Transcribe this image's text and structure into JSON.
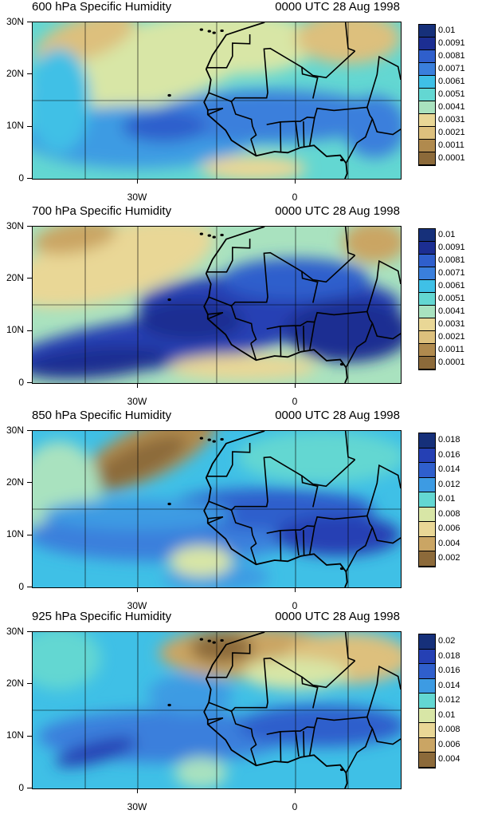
{
  "panels": [
    {
      "title_left": "600 hPa Specific Humidity",
      "title_right": "0000 UTC 28 Aug 1998",
      "y_ticks": [
        "30N",
        "20N",
        "10N",
        "0"
      ],
      "x_ticks": [
        "30W",
        "0"
      ],
      "legend_levels": [
        "0.01",
        "0.0091",
        "0.0081",
        "0.0071",
        "0.0061",
        "0.0051",
        "0.0041",
        "0.0031",
        "0.0021",
        "0.0011",
        "0.0001"
      ],
      "humidity_pattern": "moist-band-south-dry-north"
    },
    {
      "title_left": "700 hPa Specific Humidity",
      "title_right": "0000 UTC 28 Aug 1998",
      "y_ticks": [
        "30N",
        "20N",
        "10N",
        "0"
      ],
      "x_ticks": [
        "30W",
        "0"
      ],
      "legend_levels": [
        "0.01",
        "0.0091",
        "0.0081",
        "0.0071",
        "0.0061",
        "0.0051",
        "0.0041",
        "0.0031",
        "0.0021",
        "0.0011",
        "0.0001"
      ],
      "humidity_pattern": "strong-moist-plume-over-west-africa"
    },
    {
      "title_left": "850 hPa Specific Humidity",
      "title_right": "0000 UTC 28 Aug 1998",
      "y_ticks": [
        "30N",
        "20N",
        "10N",
        "0"
      ],
      "x_ticks": [
        "30W",
        "0"
      ],
      "legend_levels": [
        "0.018",
        "0.016",
        "0.014",
        "0.012",
        "0.01",
        "0.008",
        "0.006",
        "0.004",
        "0.002"
      ],
      "humidity_pattern": "dry-northwest-moist-tropics"
    },
    {
      "title_left": "925 hPa Specific Humidity",
      "title_right": "0000 UTC 28 Aug 1998",
      "y_ticks": [
        "30N",
        "20N",
        "10N",
        "0"
      ],
      "x_ticks": [
        "30W",
        "0"
      ],
      "legend_levels": [
        "0.02",
        "0.018",
        "0.016",
        "0.014",
        "0.012",
        "0.01",
        "0.008",
        "0.006",
        "0.004"
      ],
      "humidity_pattern": "dry-sahara-moist-ocean-and-coast"
    }
  ],
  "map_extent": {
    "lon_min": -50,
    "lon_max": 20,
    "lat_min": 0,
    "lat_max": 30
  },
  "colormap_dry_to_wet": [
    "#8c6a3a",
    "#b08a4e",
    "#caa564",
    "#ddc07d",
    "#e9d796",
    "#d8e6a6",
    "#a9e2bf",
    "#63d7d2",
    "#3fc0e6",
    "#3d9be3",
    "#3a7fdc",
    "#2f5fcc",
    "#2540b4",
    "#1c2e92",
    "#16307a"
  ],
  "colors": {
    "land_border": "#000000",
    "graticule": "#000000",
    "background": "#ffffff"
  }
}
